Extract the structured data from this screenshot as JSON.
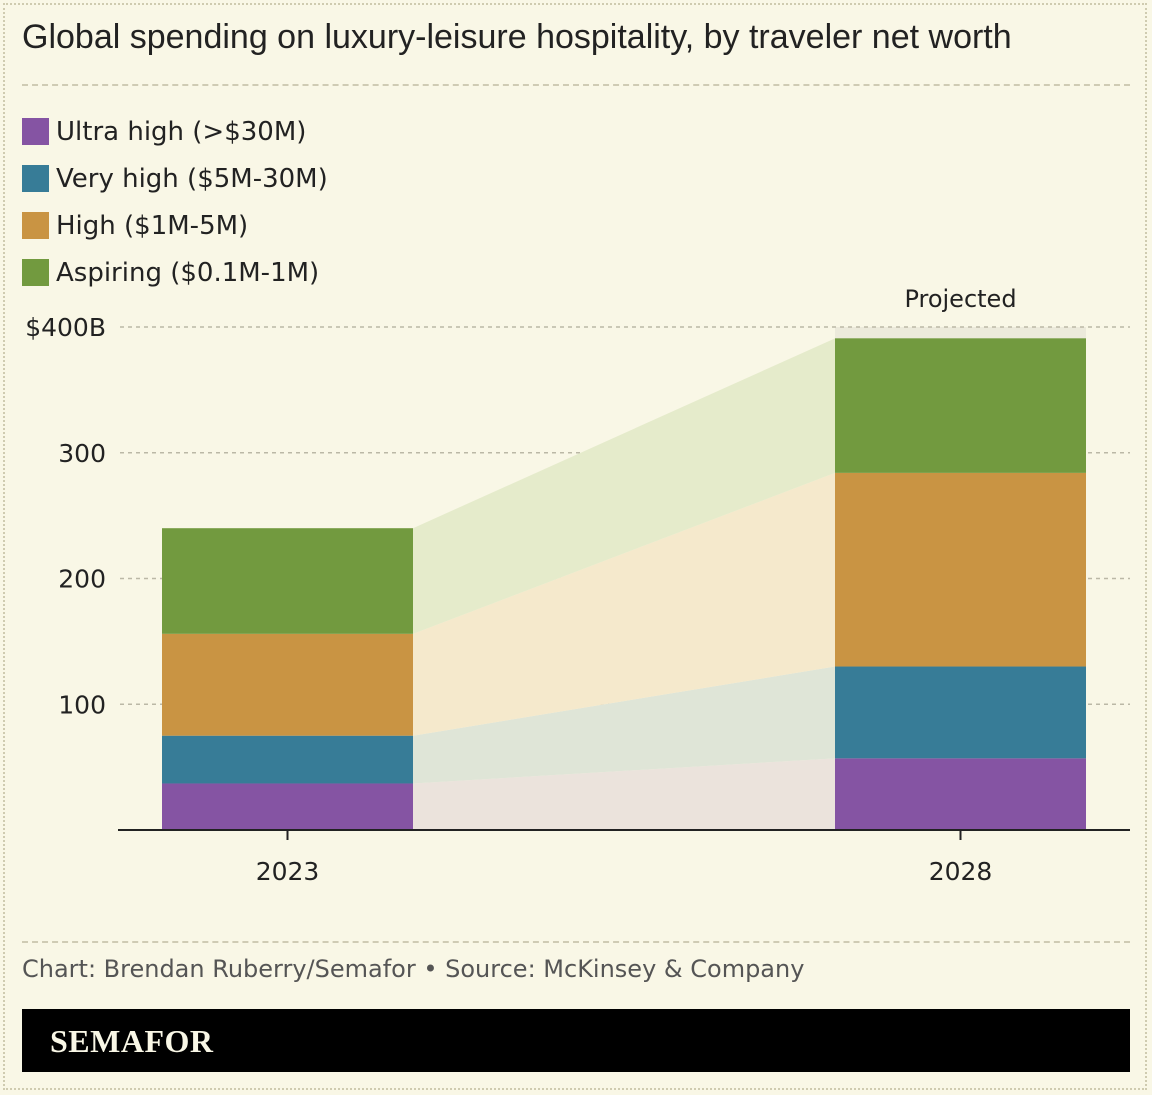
{
  "title": "Global spending on luxury-leisure hospitality, by traveler net worth",
  "legend": [
    {
      "label": "Ultra high (>$30M)",
      "color": "#8554a3"
    },
    {
      "label": "Very high ($5M-30M)",
      "color": "#377c97"
    },
    {
      "label": "High ($1M-5M)",
      "color": "#c99443"
    },
    {
      "label": "Aspiring ($0.1M-1M)",
      "color": "#729a3f"
    }
  ],
  "chart_data": {
    "type": "bar",
    "stacked": true,
    "title": "Global spending on luxury-leisure hospitality, by traveler net worth",
    "xlabel": "",
    "ylabel": "",
    "ylim": [
      0,
      400
    ],
    "yticks": [
      100,
      200,
      300,
      400
    ],
    "ytick_labels": [
      "100",
      "200",
      "300",
      "$400B"
    ],
    "categories": [
      "2023",
      "2028"
    ],
    "series": [
      {
        "name": "Ultra high (>$30M)",
        "values": [
          37,
          57
        ]
      },
      {
        "name": "Very high ($5M-30M)",
        "values": [
          38,
          73
        ]
      },
      {
        "name": "High ($1M-5M)",
        "values": [
          81,
          154
        ]
      },
      {
        "name": "Aspiring ($0.1M-1M)",
        "values": [
          84,
          107
        ]
      }
    ],
    "annotations": [
      {
        "category": "2028",
        "text": "Projected"
      }
    ]
  },
  "credit": "Chart: Brendan Ruberry/Semafor • Source: McKinsey & Company",
  "brand": "SEMAFOR"
}
